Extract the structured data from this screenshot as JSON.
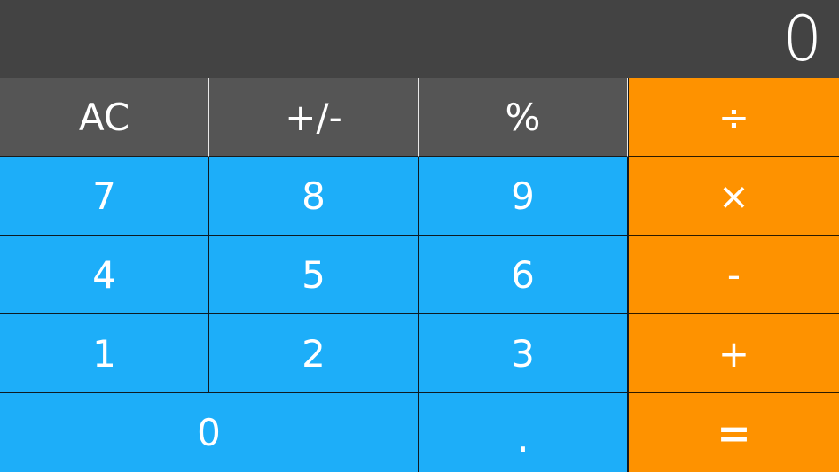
{
  "display": {
    "value": "0"
  },
  "keys": {
    "ac": "AC",
    "sign": "+/-",
    "percent": "%",
    "divide": "÷",
    "seven": "7",
    "eight": "8",
    "nine": "9",
    "multiply": "×",
    "four": "4",
    "five": "5",
    "six": "6",
    "minus": "-",
    "one": "1",
    "two": "2",
    "three": "3",
    "plus": "+",
    "zero": "0",
    "decimal": ".",
    "equals": "="
  },
  "colors": {
    "display_background": "#434343",
    "function_key": "#555555",
    "number_key": "#1daef9",
    "operator_key": "#fe9200",
    "text": "#ffffff"
  }
}
